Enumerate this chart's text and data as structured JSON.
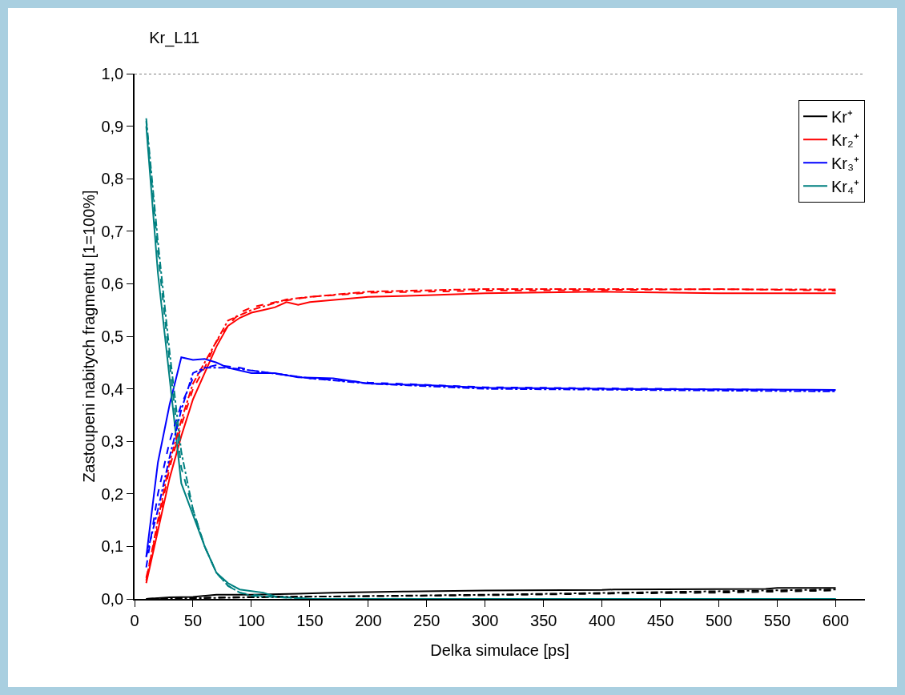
{
  "chart_data": {
    "type": "line",
    "title": "Kr_L11",
    "xlabel": "Delka simulace [ps]",
    "ylabel": "Zastoupeni nabitych fragmentu [1=100%]",
    "xlim": [
      0,
      625
    ],
    "xticks": [
      0,
      50,
      100,
      150,
      200,
      250,
      300,
      350,
      400,
      450,
      500,
      550,
      600
    ],
    "ylim": [
      0,
      1
    ],
    "yticks": [
      {
        "value": 0,
        "label": "0,0"
      },
      {
        "value": 0.1,
        "label": "0,1"
      },
      {
        "value": 0.2,
        "label": "0,2"
      },
      {
        "value": 0.3,
        "label": "0,3"
      },
      {
        "value": 0.4,
        "label": "0,4"
      },
      {
        "value": 0.5,
        "label": "0,5"
      },
      {
        "value": 0.6,
        "label": "0,6"
      },
      {
        "value": 0.7,
        "label": "0,7"
      },
      {
        "value": 0.8,
        "label": "0,8"
      },
      {
        "value": 0.9,
        "label": "0,9"
      },
      {
        "value": 1,
        "label": "1,0"
      }
    ],
    "grid": false,
    "legend": "top right",
    "marker": "none",
    "ref_lines": [
      {
        "axis": "y",
        "value": 1,
        "color": "#000000",
        "line_style": "dotted"
      }
    ],
    "series": [
      {
        "name": "Kr⁺",
        "color": "#000000",
        "line_style": "solid",
        "x": [
          10,
          30,
          50,
          70,
          100,
          140,
          170,
          230,
          300,
          400,
          410,
          540,
          550,
          600
        ],
        "values": [
          0,
          0.003,
          0.004,
          0.008,
          0.008,
          0.01,
          0.012,
          0.014,
          0.016,
          0.017,
          0.018,
          0.019,
          0.021,
          0.021
        ]
      },
      {
        "name": "Kr₂⁺",
        "color": "#ff0000",
        "line_style": "solid",
        "x": [
          10,
          20,
          30,
          40,
          50,
          60,
          70,
          80,
          90,
          100,
          110,
          120,
          130,
          140,
          150,
          175,
          200,
          250,
          300,
          400,
          500,
          600
        ],
        "values": [
          0.03,
          0.13,
          0.23,
          0.31,
          0.38,
          0.43,
          0.48,
          0.52,
          0.535,
          0.545,
          0.55,
          0.555,
          0.565,
          0.56,
          0.565,
          0.57,
          0.575,
          0.578,
          0.582,
          0.585,
          0.582,
          0.582
        ]
      },
      {
        "name": "Kr₃⁺",
        "color": "#0000ff",
        "line_style": "solid",
        "x": [
          10,
          20,
          30,
          40,
          50,
          60,
          70,
          80,
          100,
          120,
          140,
          170,
          200,
          250,
          300,
          400,
          600
        ],
        "values": [
          0.08,
          0.26,
          0.37,
          0.46,
          0.455,
          0.457,
          0.45,
          0.44,
          0.43,
          0.43,
          0.422,
          0.42,
          0.41,
          0.407,
          0.402,
          0.4,
          0.398
        ]
      },
      {
        "name": "Kr₄⁺",
        "color": "#008080",
        "line_style": "solid",
        "x": [
          10,
          20,
          30,
          40,
          50,
          60,
          70,
          80,
          90,
          100,
          110,
          120,
          140,
          150,
          600
        ],
        "values": [
          0.9,
          0.62,
          0.42,
          0.22,
          0.16,
          0.1,
          0.05,
          0.03,
          0.018,
          0.015,
          0.012,
          0.005,
          0.002,
          0,
          0
        ]
      },
      {
        "color": "#000000",
        "line_style": "dashed",
        "x": [
          10,
          50,
          100,
          200,
          300,
          400,
          500,
          600
        ],
        "values": [
          0,
          0.002,
          0.004,
          0.005,
          0.007,
          0.01,
          0.012,
          0.016
        ]
      },
      {
        "color": "#ff0000",
        "line_style": "dashed",
        "x": [
          10,
          20,
          30,
          40,
          50,
          60,
          70,
          80,
          90,
          100,
          120,
          150,
          200,
          300,
          400,
          500,
          600
        ],
        "values": [
          0.04,
          0.14,
          0.25,
          0.33,
          0.4,
          0.44,
          0.49,
          0.52,
          0.545,
          0.555,
          0.565,
          0.575,
          0.583,
          0.587,
          0.588,
          0.59,
          0.587
        ]
      },
      {
        "color": "#0000ff",
        "line_style": "dashed",
        "x": [
          10,
          20,
          30,
          40,
          50,
          60,
          70,
          90,
          100,
          150,
          200,
          300,
          600
        ],
        "values": [
          0.06,
          0.2,
          0.3,
          0.37,
          0.42,
          0.44,
          0.445,
          0.44,
          0.435,
          0.42,
          0.412,
          0.403,
          0.397
        ]
      },
      {
        "color": "#008080",
        "line_style": "dashed",
        "x": [
          10,
          20,
          30,
          40,
          50,
          60,
          70,
          80,
          90,
          100,
          120,
          150,
          600
        ],
        "values": [
          0.91,
          0.66,
          0.45,
          0.25,
          0.17,
          0.1,
          0.05,
          0.025,
          0.012,
          0.008,
          0.004,
          0,
          0
        ]
      },
      {
        "color": "#000000",
        "line_style": "dashdot",
        "x": [
          10,
          100,
          300,
          600
        ],
        "values": [
          0,
          0.003,
          0.008,
          0.018
        ]
      },
      {
        "color": "#ff0000",
        "line_style": "dashdot",
        "x": [
          10,
          20,
          30,
          40,
          50,
          60,
          70,
          80,
          100,
          130,
          150,
          200,
          300,
          400,
          600
        ],
        "values": [
          0.035,
          0.15,
          0.26,
          0.34,
          0.41,
          0.45,
          0.49,
          0.53,
          0.55,
          0.57,
          0.575,
          0.585,
          0.59,
          0.59,
          0.589
        ]
      },
      {
        "color": "#0000ff",
        "line_style": "dashdot",
        "x": [
          10,
          20,
          30,
          40,
          50,
          60,
          80,
          100,
          150,
          200,
          300,
          600
        ],
        "values": [
          0.08,
          0.17,
          0.27,
          0.36,
          0.43,
          0.44,
          0.44,
          0.435,
          0.42,
          0.41,
          0.4,
          0.395
        ]
      },
      {
        "color": "#008080",
        "line_style": "dashdot",
        "x": [
          10,
          20,
          30,
          40,
          50,
          60,
          70,
          80,
          90,
          100,
          150,
          600
        ],
        "values": [
          0.915,
          0.68,
          0.47,
          0.28,
          0.17,
          0.1,
          0.05,
          0.025,
          0.012,
          0.006,
          0,
          0
        ]
      }
    ]
  }
}
